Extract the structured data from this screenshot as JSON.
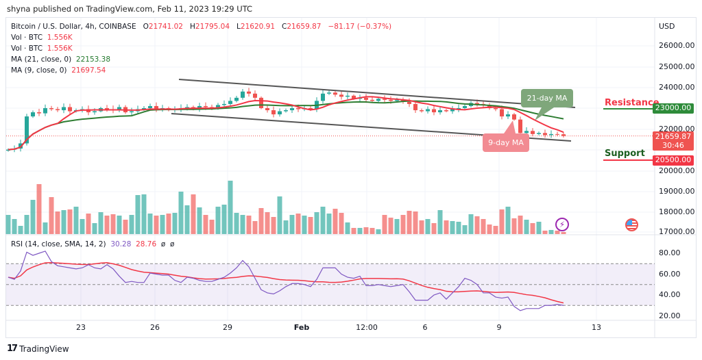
{
  "header": {
    "published": "shyna published on TradingView.com, Feb 11, 2023 19:29 UTC"
  },
  "legend": {
    "symbol": "Bitcoin / U.S. Dollar, 4h, COINBASE",
    "o_label": "O",
    "o": "21741.02",
    "h_label": "H",
    "h": "21795.04",
    "l_label": "L",
    "l": "21620.91",
    "c_label": "C",
    "c": "21659.87",
    "change": "−81.17 (−0.37%)",
    "vol1_label": "Vol · BTC",
    "vol1": "1.556K",
    "vol2_label": "Vol · BTC",
    "vol2": "1.556K",
    "ma21_label": "MA (21, close, 0)",
    "ma21": "22153.38",
    "ma9_label": "MA (9, close, 0)",
    "ma9": "21697.54",
    "rsi_label": "RSI (14, close, SMA, 14, 2)",
    "rsi": "30.28",
    "rsi_sma": "28.76",
    "rsi_extra1": "ø",
    "rsi_extra2": "ø"
  },
  "price_axis": {
    "currency": "USD",
    "ticks": [
      "26000.00",
      "25000.00",
      "24000.00",
      "23000.00",
      "22000.00",
      "21000.00",
      "20000.00",
      "19000.00",
      "18000.00",
      "17000.00"
    ]
  },
  "rsi_axis": {
    "ticks": [
      "80.00",
      "60.00",
      "40.00",
      "20.00"
    ]
  },
  "time_axis": [
    "23",
    "26",
    "29",
    "Feb",
    "12:00",
    "6",
    "9",
    "13"
  ],
  "annotations": {
    "resistance": "Resistance",
    "resistance_price": "23000.00",
    "support": "Support",
    "support_price": "20500.00",
    "current_price": "21659.87",
    "countdown": "30:46",
    "ma21_callout": "21-day MA",
    "ma9_callout": "9-day MA"
  },
  "colors": {
    "up": "#26a69a",
    "down": "#ef5350",
    "ma9": "#f23645",
    "ma21": "#2e7d32",
    "rsi": "#7e57c2",
    "rsi_sma": "#f23645",
    "resistance": "#2e8b3a",
    "support": "#f23645"
  },
  "icons": [
    "lightning-icon",
    "us-flag-icon",
    "tradingview-logo-icon"
  ],
  "branding": {
    "logo_text": "TradingView"
  },
  "chart_data": {
    "type": "candlestick",
    "interval": "4h",
    "start": "2023-01-20",
    "end": "2023-02-11",
    "closes": [
      21000,
      21050,
      21300,
      22600,
      22800,
      22750,
      23000,
      22950,
      22900,
      23050,
      22850,
      22900,
      22950,
      22800,
      22850,
      23000,
      22950,
      22900,
      23050,
      22800,
      22850,
      22950,
      23000,
      23100,
      22950,
      23000,
      22900,
      22950,
      23000,
      23050,
      22950,
      23100,
      23050,
      23000,
      23150,
      23200,
      23350,
      23500,
      23800,
      23700,
      23500,
      23000,
      22900,
      22700,
      22850,
      22900,
      23000,
      22950,
      23000,
      22950,
      23350,
      23700,
      23750,
      23650,
      23550,
      23600,
      23450,
      23500,
      23400,
      23350,
      23450,
      23400,
      23350,
      23400,
      23300,
      23200,
      22900,
      22850,
      22950,
      22800,
      22900,
      22850,
      22950,
      23000,
      23100,
      23250,
      23200,
      23150,
      23000,
      22950,
      22600,
      22700,
      22450,
      21800,
      21900,
      21750,
      21800,
      21700,
      21750,
      21740,
      21660
    ],
    "volume": [
      28,
      22,
      12,
      28,
      50,
      73,
      17,
      54,
      33,
      35,
      36,
      40,
      22,
      30,
      16,
      32,
      27,
      29,
      27,
      21,
      28,
      57,
      58,
      30,
      27,
      28,
      30,
      31,
      62,
      42,
      58,
      39,
      28,
      21,
      40,
      43,
      78,
      31,
      28,
      27,
      19,
      38,
      32,
      25,
      55,
      20,
      28,
      30,
      27,
      25,
      32,
      40,
      30,
      37,
      31,
      17,
      9,
      9,
      10,
      9,
      7,
      28,
      24,
      22,
      28,
      34,
      33,
      20,
      22,
      16,
      35,
      20,
      19,
      18,
      13,
      29,
      26,
      22,
      14,
      12,
      36,
      40,
      23,
      27,
      21,
      16,
      18,
      5,
      6,
      5,
      3
    ],
    "rsi": [
      57,
      55,
      63,
      81,
      78,
      80,
      82,
      72,
      68,
      67,
      66,
      65,
      66,
      69,
      66,
      65,
      69,
      65,
      58,
      52,
      53,
      52,
      52,
      61,
      60,
      59,
      59,
      54,
      52,
      57,
      56,
      54,
      53,
      53,
      55,
      57,
      61,
      66,
      73,
      67,
      56,
      45,
      42,
      41,
      44,
      48,
      51,
      51,
      50,
      48,
      55,
      66,
      66,
      66,
      60,
      57,
      56,
      58,
      49,
      49,
      50,
      49,
      48,
      49,
      50,
      43,
      35,
      35,
      35,
      40,
      42,
      36,
      42,
      48,
      56,
      54,
      50,
      42,
      42,
      38,
      37,
      38,
      29,
      25,
      27,
      27,
      27,
      30,
      30,
      31,
      30
    ],
    "ma_periods": [
      9,
      21
    ],
    "rsi_sma_period": 14,
    "rsi_levels": [
      70,
      50,
      30
    ],
    "trendlines": [
      {
        "name": "upper channel"
      },
      {
        "name": "lower channel"
      }
    ],
    "levels": {
      "resistance": 23000,
      "support": 20500
    },
    "ylim": [
      17000,
      26500
    ],
    "rsi_ylim": [
      15,
      90
    ]
  }
}
